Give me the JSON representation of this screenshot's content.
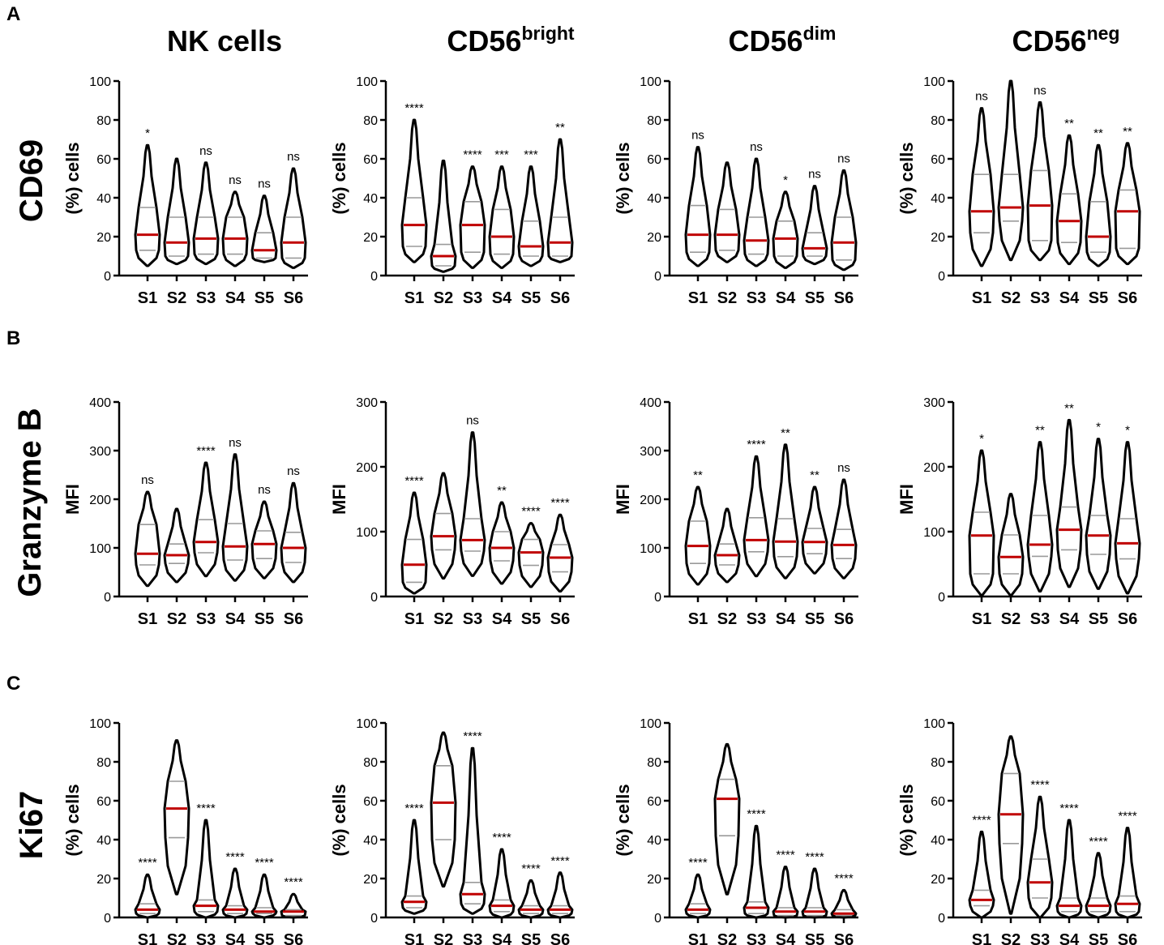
{
  "panels": [
    "A",
    "B",
    "C"
  ],
  "column_titles": [
    {
      "main": "NK cells",
      "sup": ""
    },
    {
      "main": "CD56",
      "sup": "bright"
    },
    {
      "main": "CD56",
      "sup": "dim"
    },
    {
      "main": "CD56",
      "sup": "neg"
    }
  ],
  "row_labels": [
    "CD69",
    "Granzyme B",
    "Ki67"
  ],
  "chart_data": [
    {
      "type": "violin",
      "row": "CD69",
      "subset": "NK cells",
      "ylabel": "(%) cells",
      "ylim": [
        0,
        100
      ],
      "yticks": [
        0,
        20,
        40,
        60,
        80,
        100
      ],
      "categories": [
        "S1",
        "S2",
        "S3",
        "S4",
        "S5",
        "S6"
      ],
      "min": [
        5,
        6,
        6,
        5,
        7,
        4
      ],
      "max": [
        67,
        60,
        58,
        43,
        41,
        55
      ],
      "q1": [
        13,
        10,
        11,
        11,
        9,
        9
      ],
      "median": [
        21,
        17,
        19,
        19,
        13,
        17
      ],
      "q3": [
        35,
        30,
        30,
        30,
        22,
        30
      ],
      "significance": [
        "*",
        "",
        "ns",
        "ns",
        "ns",
        "ns"
      ]
    },
    {
      "type": "violin",
      "row": "CD69",
      "subset": "CD56 bright",
      "ylabel": "(%) cells",
      "ylim": [
        0,
        100
      ],
      "yticks": [
        0,
        20,
        40,
        60,
        80,
        100
      ],
      "categories": [
        "S1",
        "S2",
        "S3",
        "S4",
        "S5",
        "S6"
      ],
      "min": [
        7,
        2,
        4,
        4,
        5,
        7
      ],
      "max": [
        80,
        59,
        56,
        56,
        56,
        70
      ],
      "q1": [
        15,
        5,
        12,
        11,
        10,
        10
      ],
      "median": [
        26,
        10,
        26,
        20,
        15,
        17
      ],
      "q3": [
        40,
        16,
        38,
        34,
        28,
        30
      ],
      "significance": [
        "****",
        "",
        "****",
        "***",
        "***",
        "**"
      ]
    },
    {
      "type": "violin",
      "row": "CD69",
      "subset": "CD56 dim",
      "ylabel": "(%) cells",
      "ylim": [
        0,
        100
      ],
      "yticks": [
        0,
        20,
        40,
        60,
        80,
        100
      ],
      "categories": [
        "S1",
        "S2",
        "S3",
        "S4",
        "S5",
        "S6"
      ],
      "min": [
        5,
        7,
        5,
        4,
        6,
        3
      ],
      "max": [
        66,
        58,
        60,
        43,
        46,
        54
      ],
      "q1": [
        12,
        13,
        11,
        10,
        10,
        8
      ],
      "median": [
        21,
        21,
        18,
        19,
        14,
        17
      ],
      "q3": [
        36,
        34,
        30,
        28,
        22,
        30
      ],
      "significance": [
        "ns",
        "",
        "ns",
        "*",
        "ns",
        "ns"
      ]
    },
    {
      "type": "violin",
      "row": "CD69",
      "subset": "CD56 neg",
      "ylabel": "(%) cells",
      "ylim": [
        0,
        100
      ],
      "yticks": [
        0,
        20,
        40,
        60,
        80,
        100
      ],
      "categories": [
        "S1",
        "S2",
        "S3",
        "S4",
        "S5",
        "S6"
      ],
      "min": [
        5,
        8,
        8,
        6,
        5,
        6
      ],
      "max": [
        86,
        100,
        89,
        72,
        67,
        68
      ],
      "q1": [
        22,
        28,
        18,
        17,
        12,
        14
      ],
      "median": [
        33,
        35,
        36,
        28,
        20,
        33
      ],
      "q3": [
        52,
        52,
        54,
        42,
        38,
        44
      ],
      "significance": [
        "ns",
        "",
        "ns",
        "**",
        "**",
        "**"
      ]
    },
    {
      "type": "violin",
      "row": "Granzyme B",
      "subset": "NK cells",
      "ylabel": "MFI",
      "ylim": [
        0,
        400
      ],
      "yticks": [
        0,
        100,
        200,
        300,
        400
      ],
      "categories": [
        "S1",
        "S2",
        "S3",
        "S4",
        "S5",
        "S6"
      ],
      "min": [
        22,
        30,
        42,
        33,
        38,
        30
      ],
      "max": [
        215,
        180,
        275,
        292,
        195,
        233
      ],
      "q1": [
        65,
        68,
        90,
        75,
        78,
        70
      ],
      "median": [
        88,
        85,
        112,
        103,
        108,
        100
      ],
      "q3": [
        148,
        108,
        158,
        150,
        135,
        132
      ],
      "significance": [
        "ns",
        "",
        "****",
        "ns",
        "ns",
        "ns"
      ]
    },
    {
      "type": "violin",
      "row": "Granzyme B",
      "subset": "CD56 bright",
      "ylabel": "MFI",
      "ylim": [
        0,
        300
      ],
      "yticks": [
        0,
        100,
        200,
        300
      ],
      "categories": [
        "S1",
        "S2",
        "S3",
        "S4",
        "S5",
        "S6"
      ],
      "min": [
        5,
        28,
        32,
        20,
        15,
        8
      ],
      "max": [
        160,
        190,
        253,
        145,
        113,
        126
      ],
      "q1": [
        22,
        72,
        70,
        55,
        48,
        38
      ],
      "median": [
        49,
        93,
        87,
        75,
        68,
        60
      ],
      "q3": [
        88,
        128,
        120,
        100,
        88,
        80
      ],
      "significance": [
        "****",
        "",
        "ns",
        "**",
        "****",
        "****"
      ]
    },
    {
      "type": "violin",
      "row": "Granzyme B",
      "subset": "CD56 dim",
      "ylabel": "MFI",
      "ylim": [
        0,
        400
      ],
      "yticks": [
        0,
        100,
        200,
        300,
        400
      ],
      "categories": [
        "S1",
        "S2",
        "S3",
        "S4",
        "S5",
        "S6"
      ],
      "min": [
        25,
        30,
        42,
        38,
        48,
        38
      ],
      "max": [
        225,
        180,
        288,
        312,
        225,
        240
      ],
      "q1": [
        68,
        65,
        92,
        82,
        88,
        78
      ],
      "median": [
        104,
        85,
        116,
        113,
        112,
        106
      ],
      "q3": [
        155,
        108,
        162,
        160,
        140,
        138
      ],
      "significance": [
        "**",
        "",
        "****",
        "**",
        "**",
        "ns"
      ]
    },
    {
      "type": "violin",
      "row": "Granzyme B",
      "subset": "CD56 neg",
      "ylabel": "MFI",
      "ylim": [
        0,
        300
      ],
      "yticks": [
        0,
        100,
        200,
        300
      ],
      "categories": [
        "S1",
        "S2",
        "S3",
        "S4",
        "S5",
        "S6"
      ],
      "min": [
        2,
        2,
        8,
        15,
        12,
        5
      ],
      "max": [
        225,
        158,
        238,
        272,
        243,
        238
      ],
      "q1": [
        35,
        35,
        62,
        72,
        65,
        58
      ],
      "median": [
        94,
        61,
        80,
        103,
        94,
        82
      ],
      "q3": [
        130,
        95,
        125,
        138,
        125,
        120
      ],
      "significance": [
        "*",
        "",
        "**",
        "**",
        "*",
        "*"
      ]
    },
    {
      "type": "violin",
      "row": "Ki67",
      "subset": "NK cells",
      "ylabel": "(%) cells",
      "ylim": [
        0,
        100
      ],
      "yticks": [
        0,
        20,
        40,
        60,
        80,
        100
      ],
      "categories": [
        "S1",
        "S2",
        "S3",
        "S4",
        "S5",
        "S6"
      ],
      "min": [
        0,
        12,
        0,
        0,
        0,
        0
      ],
      "max": [
        22,
        91,
        50,
        25,
        22,
        12
      ],
      "q1": [
        2,
        41,
        3,
        2,
        2,
        1
      ],
      "median": [
        4,
        56,
        6,
        4,
        3,
        3
      ],
      "q3": [
        7,
        70,
        9,
        6,
        5,
        4
      ],
      "significance": [
        "****",
        "",
        "****",
        "****",
        "****",
        "****"
      ]
    },
    {
      "type": "violin",
      "row": "Ki67",
      "subset": "CD56 bright",
      "ylabel": "(%) cells",
      "ylim": [
        0,
        100
      ],
      "yticks": [
        0,
        20,
        40,
        60,
        80,
        100
      ],
      "categories": [
        "S1",
        "S2",
        "S3",
        "S4",
        "S5",
        "S6"
      ],
      "min": [
        2,
        16,
        2,
        0,
        0,
        0
      ],
      "max": [
        50,
        95,
        87,
        35,
        19,
        23
      ],
      "q1": [
        5,
        40,
        7,
        3,
        2,
        2
      ],
      "median": [
        8,
        59,
        12,
        6,
        4,
        4
      ],
      "q3": [
        11,
        78,
        18,
        9,
        6,
        6
      ],
      "significance": [
        "****",
        "",
        "****",
        "****",
        "****",
        "****"
      ]
    },
    {
      "type": "violin",
      "row": "Ki67",
      "subset": "CD56 dim",
      "ylabel": "(%) cells",
      "ylim": [
        0,
        100
      ],
      "yticks": [
        0,
        20,
        40,
        60,
        80,
        100
      ],
      "categories": [
        "S1",
        "S2",
        "S3",
        "S4",
        "S5",
        "S6"
      ],
      "min": [
        0,
        12,
        0,
        0,
        0,
        0
      ],
      "max": [
        22,
        89,
        47,
        26,
        25,
        14
      ],
      "q1": [
        2,
        42,
        2,
        1,
        1,
        1
      ],
      "median": [
        4,
        61,
        5,
        3,
        3,
        2
      ],
      "q3": [
        7,
        71,
        8,
        5,
        5,
        4
      ],
      "significance": [
        "****",
        "",
        "****",
        "****",
        "****",
        "****"
      ]
    },
    {
      "type": "violin",
      "row": "Ki67",
      "subset": "CD56 neg",
      "ylabel": "(%) cells",
      "ylim": [
        0,
        100
      ],
      "yticks": [
        0,
        20,
        40,
        60,
        80,
        100
      ],
      "categories": [
        "S1",
        "S2",
        "S3",
        "S4",
        "S5",
        "S6"
      ],
      "min": [
        0,
        2,
        0,
        0,
        0,
        0
      ],
      "max": [
        44,
        93,
        62,
        50,
        33,
        46
      ],
      "q1": [
        6,
        38,
        10,
        3,
        3,
        3
      ],
      "median": [
        9,
        53,
        18,
        6,
        6,
        7
      ],
      "q3": [
        14,
        74,
        30,
        10,
        10,
        11
      ],
      "significance": [
        "****",
        "",
        "****",
        "****",
        "****",
        "****"
      ]
    }
  ]
}
